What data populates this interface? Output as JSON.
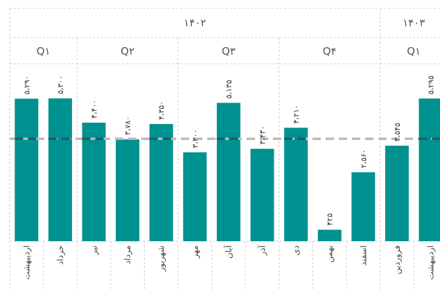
{
  "chart_data": {
    "type": "bar",
    "title": "",
    "xlabel": "",
    "ylabel": "",
    "years": [
      {
        "label": "۱۴۰۲",
        "months": 11
      },
      {
        "label": "۱۴۰۳",
        "months": 2
      }
    ],
    "quarters": [
      {
        "label": "Q۱",
        "months": 2
      },
      {
        "label": "Q۲",
        "months": 3
      },
      {
        "label": "Q۳",
        "months": 3
      },
      {
        "label": "Q۴",
        "months": 3
      },
      {
        "label": "Q۱",
        "months": 2
      }
    ],
    "categories": [
      "اردیبهشت",
      "خرداد",
      "تیر",
      "مرداد",
      "شهریور",
      "مهر",
      "آبان",
      "آذر",
      "دی",
      "بهمن",
      "اسفند",
      "فروردین",
      "اردیبهشت"
    ],
    "values": [
      5290,
      5300,
      4400,
      3780,
      4350,
      3300,
      5135,
      3430,
      4210,
      425,
      2560,
      3545,
      5295
    ],
    "value_labels": [
      "۵،۲۹۰",
      "۵،۳۰۰",
      "۴،۴۰۰",
      "۳،۷۸۰",
      "۴،۳۵۰",
      "۳،۳۰۰",
      "۵،۱۳۵",
      "۳،۴۳۰",
      "۴،۲۱۰",
      "۴۲۵",
      "۲،۵۶۰",
      "۳،۵۴۵",
      "۵،۲۹۵"
    ],
    "reference_line": 3800,
    "ylim": [
      0,
      5300
    ],
    "colors": {
      "bar": "#009191",
      "reference": "#bbbbbb",
      "grid": "#cccccc"
    }
  }
}
